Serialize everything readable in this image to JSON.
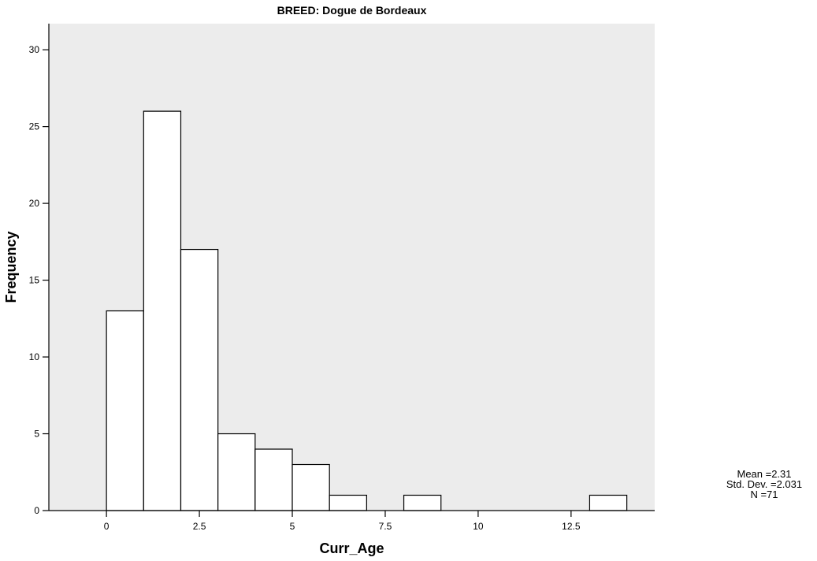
{
  "chart_data": {
    "type": "bar",
    "title": "BREED: Dogue de Bordeaux",
    "xlabel": "Curr_Age",
    "ylabel": "Frequency",
    "bin_width": 1,
    "bins": [
      {
        "start": 0,
        "end": 1,
        "count": 13
      },
      {
        "start": 1,
        "end": 2,
        "count": 26
      },
      {
        "start": 2,
        "end": 3,
        "count": 17
      },
      {
        "start": 3,
        "end": 4,
        "count": 5
      },
      {
        "start": 4,
        "end": 5,
        "count": 4
      },
      {
        "start": 5,
        "end": 6,
        "count": 3
      },
      {
        "start": 6,
        "end": 7,
        "count": 1
      },
      {
        "start": 8,
        "end": 9,
        "count": 1
      },
      {
        "start": 13,
        "end": 14,
        "count": 1
      }
    ],
    "xlim": [
      -1.55,
      14.75
    ],
    "ylim": [
      0,
      31.7
    ],
    "xticks": [
      0,
      2.5,
      5,
      7.5,
      10,
      12.5
    ],
    "xtick_labels": [
      "0",
      "2.5",
      "5",
      "7.5",
      "10",
      "12.5"
    ],
    "yticks": [
      0,
      5,
      10,
      15,
      20,
      25,
      30
    ],
    "ytick_labels": [
      "0",
      "5",
      "10",
      "15",
      "20",
      "25",
      "30"
    ],
    "grid": false,
    "legend": "none",
    "colors": {
      "plot_background": "#ececec",
      "bar_fill": "#ffffff",
      "bar_stroke": "#000000"
    },
    "stats": {
      "mean": "Mean =2.31",
      "std_dev": "Std. Dev. =2.031",
      "n": "N =71"
    }
  }
}
